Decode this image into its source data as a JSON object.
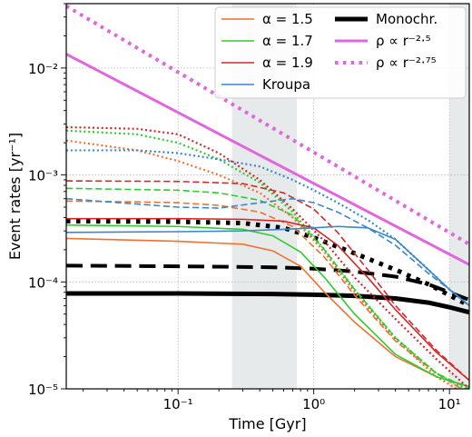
{
  "chart_data": {
    "type": "line",
    "xlabel": "Time [Gyr]",
    "ylabel": "Event rates [yr⁻¹]",
    "xscale": "log",
    "yscale": "log",
    "xlim": [
      0.015,
      14
    ],
    "ylim": [
      1e-05,
      0.04
    ],
    "x_ticks": [
      {
        "value": 0.1,
        "label": "10⁻¹"
      },
      {
        "value": 1,
        "label": "10⁰"
      },
      {
        "value": 10,
        "label": "10¹"
      }
    ],
    "y_ticks": [
      {
        "value": 1e-05,
        "label": "10⁻⁵"
      },
      {
        "value": 0.0001,
        "label": "10⁻⁴"
      },
      {
        "value": 0.001,
        "label": "10⁻³"
      },
      {
        "value": 0.01,
        "label": "10⁻²"
      }
    ],
    "grid": true,
    "shaded_bands": [
      [
        0.25,
        0.75
      ],
      [
        10,
        14
      ]
    ],
    "legend_position": "top-right",
    "legend": [
      {
        "label": "α = 1.5",
        "color": "#f07030",
        "style": "solid",
        "width": 1.6
      },
      {
        "label": "α = 1.7",
        "color": "#2ecc2e",
        "style": "solid",
        "width": 1.6
      },
      {
        "label": "α = 1.9",
        "color": "#d62728",
        "style": "solid",
        "width": 1.6
      },
      {
        "label": "Kroupa",
        "color": "#3a86c8",
        "style": "solid",
        "width": 1.6
      },
      {
        "label": "Monochr.",
        "color": "#000000",
        "style": "solid",
        "width": 5
      },
      {
        "label": "ρ ∝ r⁻²·⁵",
        "color": "#e066e0",
        "style": "solid",
        "width": 3
      },
      {
        "label": "ρ ∝ r⁻²·⁷⁵",
        "color": "#e066e0",
        "style": "dotted",
        "width": 4
      }
    ],
    "series": [
      {
        "color": "#e066e0",
        "style": "solid",
        "width": 3,
        "x": [
          0.015,
          14
        ],
        "y": [
          0.0135,
          0.000145
        ]
      },
      {
        "color": "#e066e0",
        "style": "dotted",
        "width": 4,
        "x": [
          0.015,
          14
        ],
        "y": [
          0.038,
          0.000225
        ]
      },
      {
        "color": "#000000",
        "style": "solid",
        "width": 5,
        "x": [
          0.015,
          0.1,
          0.5,
          1.0,
          2.0,
          4.0,
          7.0,
          10.0,
          14.0
        ],
        "y": [
          7.8e-05,
          7.8e-05,
          7.7e-05,
          7.6e-05,
          7.4e-05,
          7e-05,
          6.4e-05,
          5.8e-05,
          5.2e-05
        ]
      },
      {
        "color": "#000000",
        "style": "dashed",
        "width": 4,
        "x": [
          0.015,
          0.1,
          0.5,
          1.0,
          2.0,
          4.0,
          7.0,
          10.0,
          14.0
        ],
        "y": [
          0.000142,
          0.00014,
          0.000137,
          0.000133,
          0.000125,
          0.000112,
          9.5e-05,
          8e-05,
          6.8e-05
        ]
      },
      {
        "color": "#000000",
        "style": "dotted",
        "width": 5,
        "x": [
          0.015,
          0.1,
          0.3,
          0.6,
          1.0,
          2.0,
          4.0,
          7.0,
          10.0,
          14.0
        ],
        "y": [
          0.00037,
          0.000365,
          0.000355,
          0.00032,
          0.00026,
          0.000185,
          0.00013,
          9.5e-05,
          7.5e-05,
          6e-05
        ]
      },
      {
        "color": "#f07030",
        "style": "solid",
        "width": 1.6,
        "x": [
          0.015,
          0.1,
          0.3,
          0.5,
          0.8,
          1.2,
          2.0,
          4.0,
          8.0,
          14.0
        ],
        "y": [
          0.000255,
          0.00024,
          0.000225,
          0.000195,
          0.00014,
          8e-05,
          4.2e-05,
          2e-05,
          1.3e-05,
          1.05e-05
        ]
      },
      {
        "color": "#f07030",
        "style": "dashed",
        "width": 1.6,
        "x": [
          0.015,
          0.05,
          0.1,
          0.2,
          0.4,
          0.7,
          1.2,
          2.0,
          4.0,
          8.0,
          14.0
        ],
        "y": [
          0.00057,
          0.00056,
          0.00055,
          0.00052,
          0.00045,
          0.00033,
          0.00017,
          7.5e-05,
          2.8e-05,
          1.4e-05,
          9e-06
        ]
      },
      {
        "color": "#f07030",
        "style": "dotted",
        "width": 2.2,
        "x": [
          0.015,
          0.05,
          0.1,
          0.2,
          0.4,
          0.7,
          1.2,
          2.0,
          4.0,
          8.0,
          14.0
        ],
        "y": [
          0.0021,
          0.0017,
          0.00135,
          0.001,
          0.00068,
          0.0004,
          0.00019,
          8e-05,
          2.9e-05,
          1.3e-05,
          8.5e-06
        ]
      },
      {
        "color": "#2ecc2e",
        "style": "solid",
        "width": 1.6,
        "x": [
          0.015,
          0.1,
          0.3,
          0.5,
          0.8,
          1.2,
          2.0,
          4.0,
          8.0,
          14.0
        ],
        "y": [
          0.00034,
          0.00033,
          0.00031,
          0.00027,
          0.00019,
          0.00011,
          5e-05,
          2.1e-05,
          1.3e-05,
          1.05e-05
        ]
      },
      {
        "color": "#2ecc2e",
        "style": "dashed",
        "width": 1.6,
        "x": [
          0.015,
          0.1,
          0.2,
          0.4,
          0.7,
          1.2,
          2.0,
          4.0,
          8.0,
          14.0
        ],
        "y": [
          0.00075,
          0.00072,
          0.00068,
          0.00058,
          0.00042,
          0.0002,
          8.5e-05,
          3e-05,
          1.4e-05,
          1e-05
        ]
      },
      {
        "color": "#2ecc2e",
        "style": "dotted",
        "width": 2.2,
        "x": [
          0.015,
          0.05,
          0.1,
          0.2,
          0.4,
          0.7,
          1.2,
          2.0,
          4.0,
          8.0,
          14.0
        ],
        "y": [
          0.0026,
          0.0024,
          0.002,
          0.0014,
          0.00085,
          0.00045,
          0.0002,
          8.5e-05,
          3e-05,
          1.4e-05,
          9.5e-06
        ]
      },
      {
        "color": "#d62728",
        "style": "solid",
        "width": 1.6,
        "x": [
          0.015,
          0.1,
          0.3,
          0.6,
          1.0,
          1.5,
          2.5,
          4.0,
          8.0,
          14.0
        ],
        "y": [
          0.00039,
          0.00039,
          0.000385,
          0.00037,
          0.00032,
          0.00022,
          0.00011,
          5.5e-05,
          2.2e-05,
          1.2e-05
        ]
      },
      {
        "color": "#d62728",
        "style": "dashed",
        "width": 1.6,
        "x": [
          0.015,
          0.1,
          0.3,
          0.6,
          1.0,
          1.5,
          2.5,
          4.0,
          8.0,
          14.0
        ],
        "y": [
          0.00088,
          0.00087,
          0.00083,
          0.00068,
          0.00048,
          0.00029,
          0.00013,
          6e-05,
          2.3e-05,
          1.2e-05
        ]
      },
      {
        "color": "#d62728",
        "style": "dotted",
        "width": 2.2,
        "x": [
          0.015,
          0.05,
          0.1,
          0.2,
          0.4,
          0.7,
          1.2,
          2.0,
          4.0,
          8.0,
          14.0
        ],
        "y": [
          0.0028,
          0.0027,
          0.0024,
          0.0016,
          0.0009,
          0.00048,
          0.00024,
          0.00011,
          4.5e-05,
          1.9e-05,
          1e-05
        ]
      },
      {
        "color": "#3a86c8",
        "style": "solid",
        "width": 1.6,
        "x": [
          0.015,
          0.1,
          0.3,
          0.6,
          1.0,
          1.5,
          2.5,
          4.0,
          7.0,
          10.0,
          14.0
        ],
        "y": [
          0.00029,
          0.000295,
          0.0003,
          0.00031,
          0.00032,
          0.00033,
          0.00032,
          0.00025,
          0.00013,
          8.5e-05,
          6e-05
        ]
      },
      {
        "color": "#3a86c8",
        "style": "dashed",
        "width": 1.6,
        "x": [
          0.015,
          0.1,
          0.2,
          0.4,
          0.7,
          1.0,
          1.5,
          2.5,
          4.0,
          7.0,
          10.0,
          14.0
        ],
        "y": [
          0.0006,
          0.0005,
          0.00049,
          0.00055,
          0.0006,
          0.00055,
          0.00045,
          0.00032,
          0.00022,
          0.00012,
          8.5e-05,
          6e-05
        ]
      },
      {
        "color": "#3a86c8",
        "style": "dotted",
        "width": 2.2,
        "x": [
          0.015,
          0.05,
          0.1,
          0.2,
          0.4,
          0.7,
          1.0,
          1.5,
          2.5,
          4.0,
          7.0,
          10.0,
          14.0
        ],
        "y": [
          0.0017,
          0.0017,
          0.0016,
          0.0014,
          0.0012,
          0.0009,
          0.00072,
          0.00055,
          0.00038,
          0.00025,
          0.00013,
          8.5e-05,
          6e-05
        ]
      }
    ]
  }
}
